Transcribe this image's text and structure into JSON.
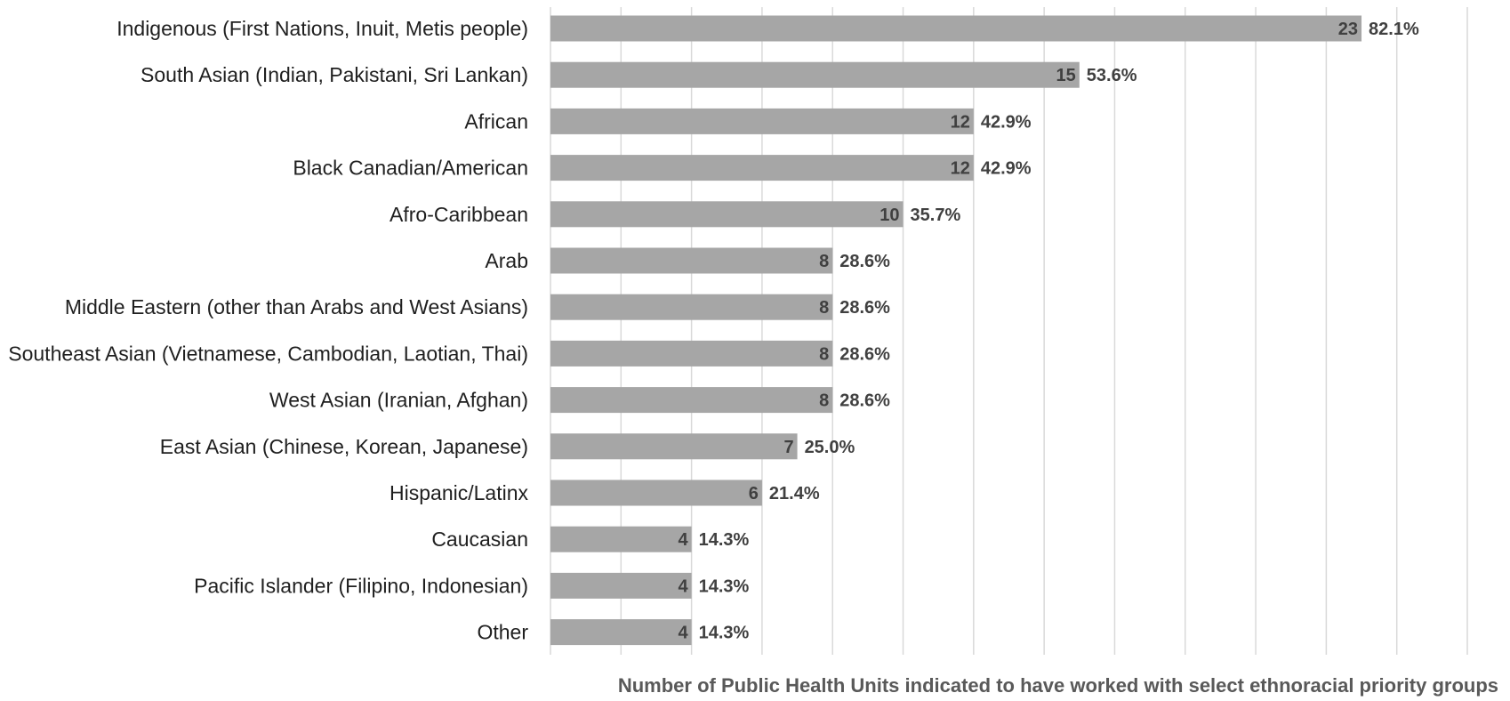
{
  "chart_data": {
    "type": "bar",
    "orientation": "horizontal",
    "categories": [
      "Indigenous (First Nations, Inuit, Metis people)",
      "South Asian (Indian, Pakistani, Sri Lankan)",
      "African",
      "Black Canadian/American",
      "Afro-Caribbean",
      "Arab",
      "Middle Eastern (other than Arabs and West Asians)",
      "Southeast Asian (Vietnamese, Cambodian, Laotian, Thai)",
      "West Asian (Iranian, Afghan)",
      "East Asian (Chinese, Korean, Japanese)",
      "Hispanic/Latinx",
      "Caucasian",
      "Pacific Islander (Filipino, Indonesian)",
      "Other"
    ],
    "values": [
      23,
      15,
      12,
      12,
      10,
      8,
      8,
      8,
      8,
      7,
      6,
      4,
      4,
      4
    ],
    "percent_labels": [
      "82.1%",
      "53.6%",
      "42.9%",
      "42.9%",
      "35.7%",
      "28.6%",
      "28.6%",
      "28.6%",
      "28.6%",
      "25.0%",
      "21.4%",
      "14.3%",
      "14.3%",
      "14.3%"
    ],
    "xlabel": "Number of Public Health Units indicated to have worked with select ethnoracial priority groups",
    "ylabel": "",
    "title": "",
    "xlim": [
      0,
      26
    ],
    "grid": true,
    "bar_color": "#a6a6a6",
    "grid_color": "#d9d9d9"
  }
}
